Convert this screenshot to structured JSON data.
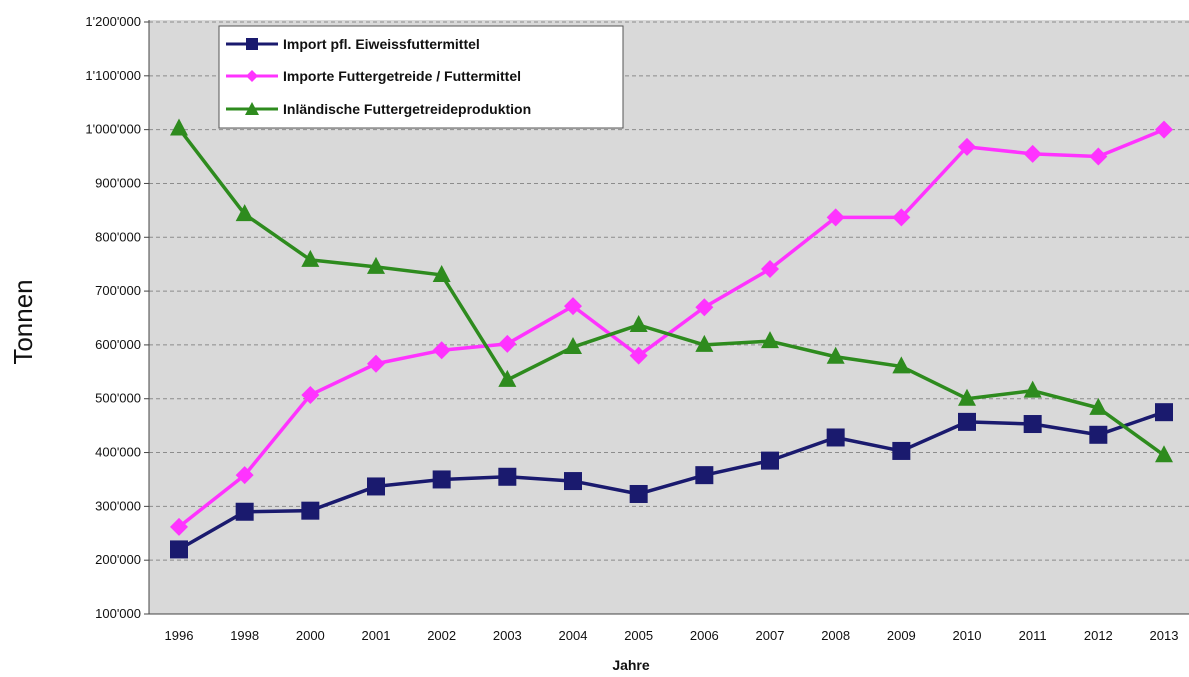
{
  "chart_data": {
    "type": "line",
    "title": "",
    "xlabel": "Jahre",
    "ylabel": "Tonnen",
    "categories": [
      "1996",
      "1998",
      "2000",
      "2001",
      "2002",
      "2003",
      "2004",
      "2005",
      "2006",
      "2007",
      "2008",
      "2009",
      "2010",
      "2011",
      "2012",
      "2013"
    ],
    "ylim": [
      100000,
      1200000
    ],
    "yticks": [
      100000,
      200000,
      300000,
      400000,
      500000,
      600000,
      700000,
      800000,
      900000,
      1000000,
      1100000,
      1200000
    ],
    "ytick_labels": [
      "100'000",
      "200'000",
      "300'000",
      "400'000",
      "500'000",
      "600'000",
      "700'000",
      "800'000",
      "900'000",
      "1'000'000",
      "1'100'000",
      "1'200'000"
    ],
    "grid": true,
    "legend_position": "top-left",
    "plot_background": "#d9d9d9",
    "series": [
      {
        "name": "Import pfl. Eiweissfuttermittel",
        "color": "#1a1a6e",
        "marker": "square",
        "values": [
          220000,
          290000,
          292000,
          337000,
          350000,
          355000,
          347000,
          323000,
          358000,
          385000,
          428000,
          403000,
          457000,
          453000,
          433000,
          475000
        ]
      },
      {
        "name": "Importe Futtergetreide / Futtermittel",
        "color": "#ff33ff",
        "marker": "diamond",
        "values": [
          262000,
          358000,
          507000,
          565000,
          590000,
          602000,
          672000,
          580000,
          670000,
          741000,
          837000,
          837000,
          968000,
          955000,
          950000,
          1000000
        ]
      },
      {
        "name": "Inländische Futtergetreideproduktion",
        "color": "#2e8b1e",
        "marker": "triangle",
        "values": [
          1002000,
          843000,
          758000,
          745000,
          730000,
          535000,
          596000,
          637000,
          600000,
          607000,
          578000,
          560000,
          500000,
          515000,
          483000,
          395000
        ]
      }
    ]
  }
}
